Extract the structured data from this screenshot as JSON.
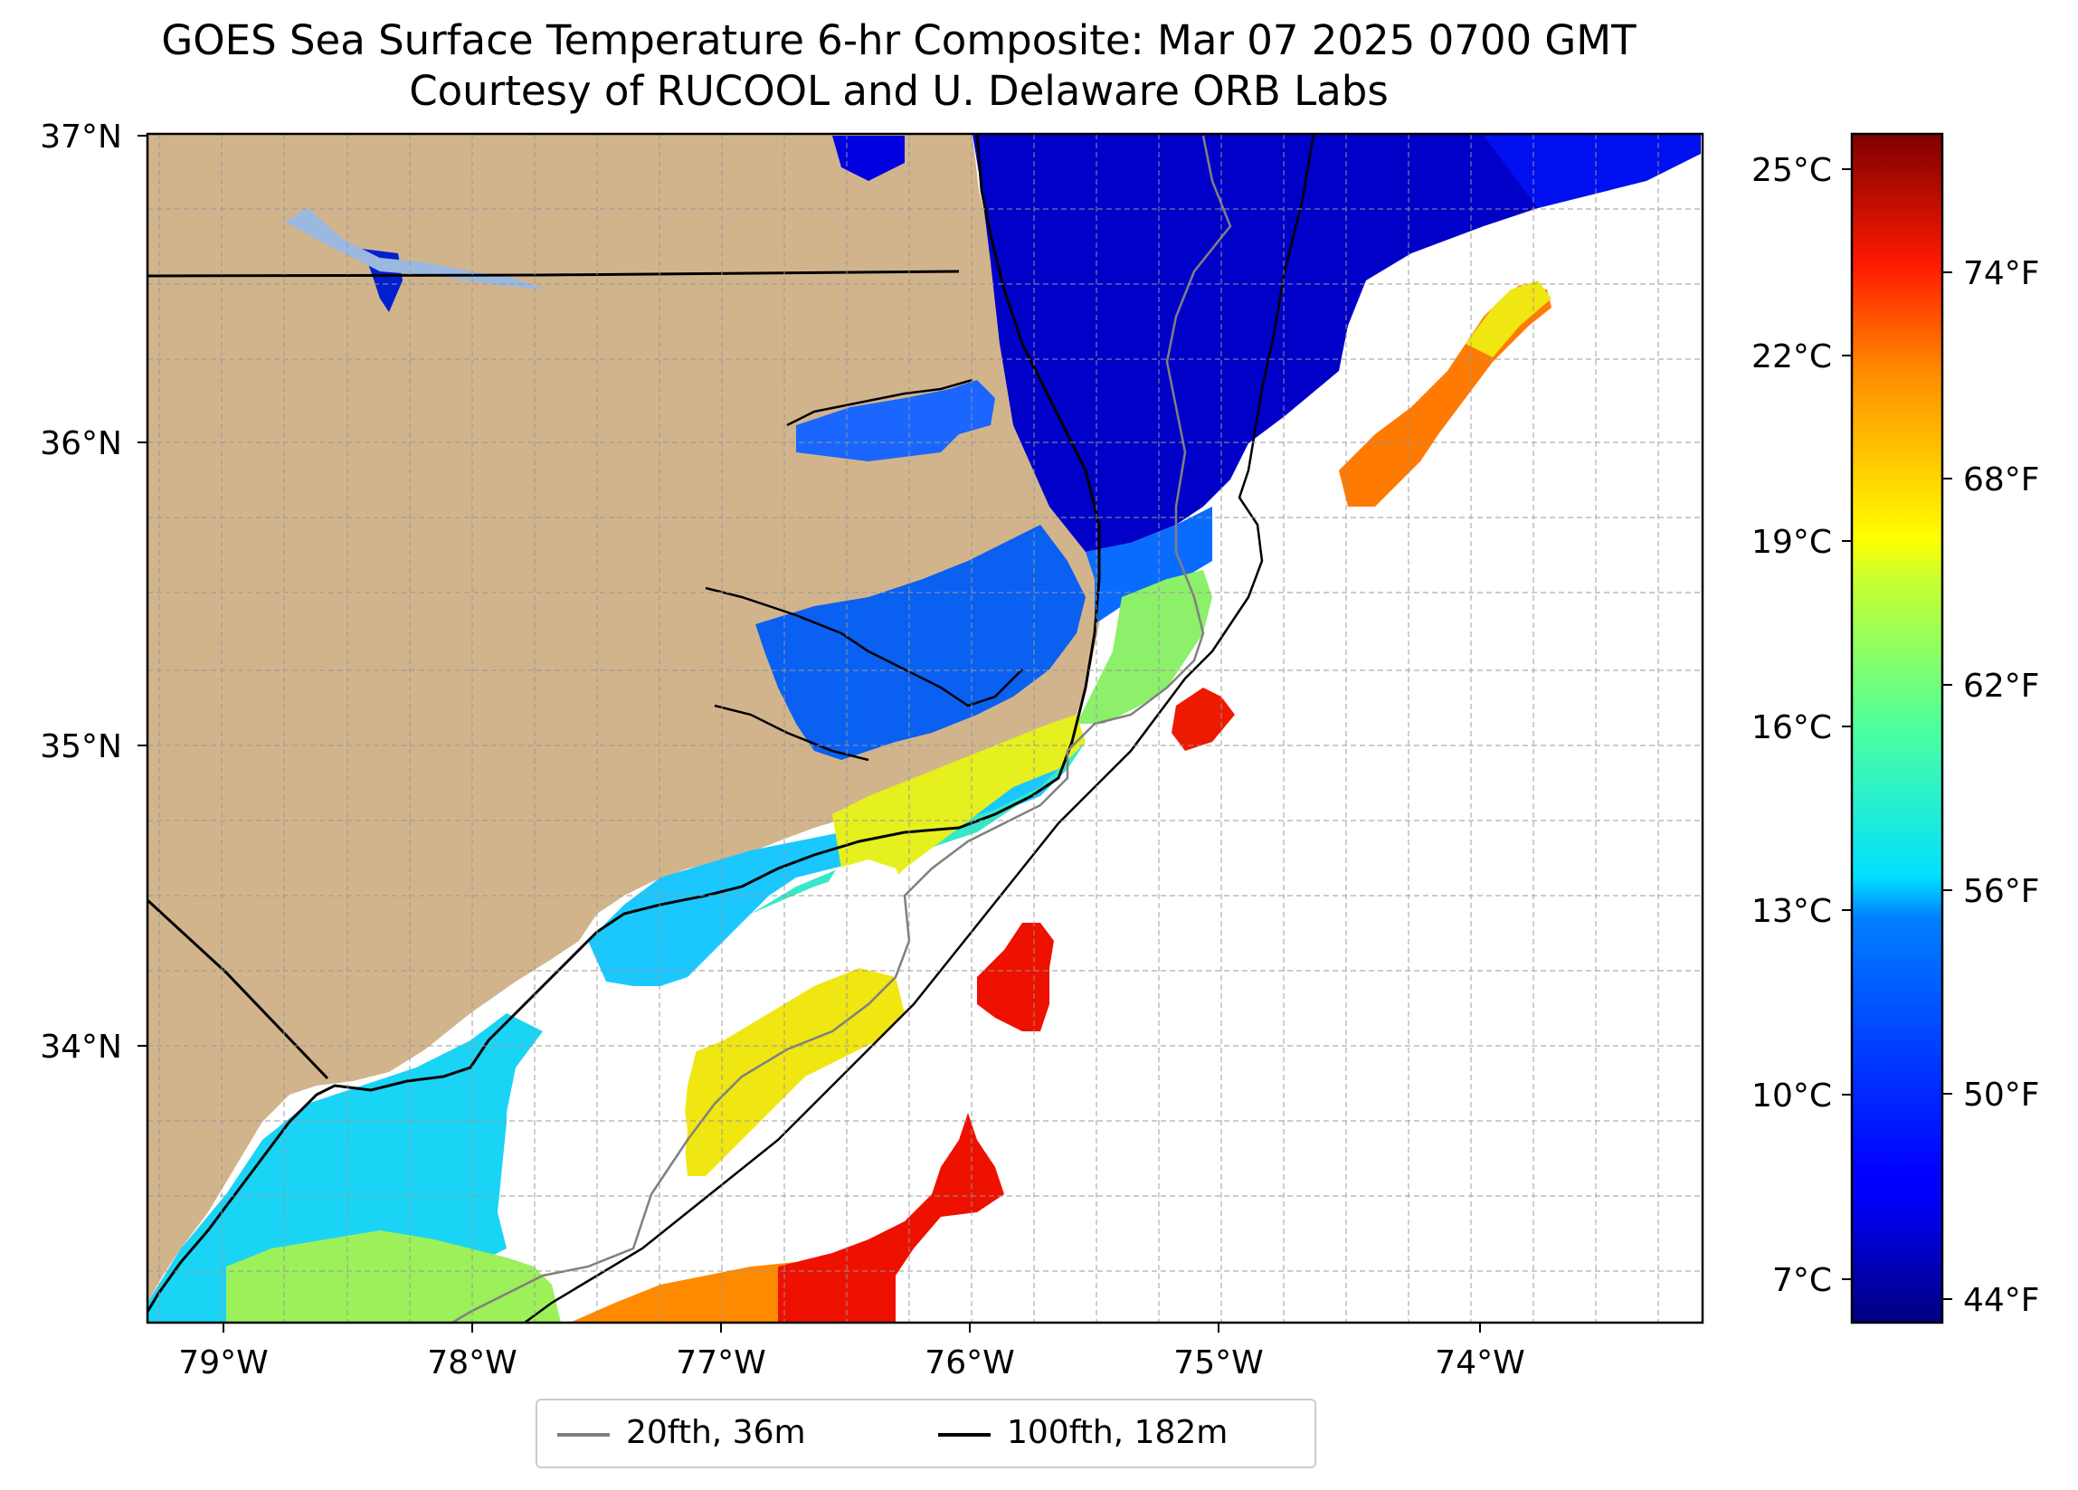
{
  "title": {
    "line1": "GOES Sea Surface Temperature 6-hr Composite: Mar 07 2025 0700 GMT",
    "line2": "Courtesy of RUCOOL and U. Delaware ORB Labs"
  },
  "map": {
    "lon_range": [
      -79.3,
      -73.05
    ],
    "lat_range": [
      33.1,
      37.0
    ],
    "lon_ticks": [
      "79°W",
      "78°W",
      "77°W",
      "76°W",
      "75°W",
      "74°W"
    ],
    "lat_ticks": [
      "37°N",
      "36°N",
      "35°N",
      "34°N"
    ],
    "land_color": "#d2b48c",
    "gridlines": true
  },
  "colorbar": {
    "colormap": "jet",
    "celsius_ticks": [
      "25°C",
      "22°C",
      "19°C",
      "16°C",
      "13°C",
      "10°C",
      "7°C"
    ],
    "fahrenheit_ticks": [
      "74°F",
      "68°F",
      "62°F",
      "56°F",
      "50°F",
      "44°F"
    ],
    "range_c": [
      6.5,
      25.6
    ]
  },
  "legend": {
    "items": [
      {
        "label": "20fth, 36m",
        "color": "#808080"
      },
      {
        "label": "100fth, 182m",
        "color": "#000000"
      }
    ]
  }
}
